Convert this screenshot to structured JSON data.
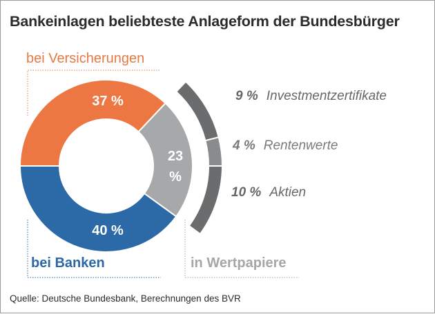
{
  "chart_data": {
    "type": "pie",
    "variant": "donut",
    "title": "Bankeinlagen beliebteste Anlageform der Bundesbürger",
    "unit": "%",
    "slices": [
      {
        "name": "bei Versicherungen",
        "value": 37,
        "label": "37 %",
        "color": "#ec7743"
      },
      {
        "name": "in Wertpapiere",
        "value": 23,
        "label": "23 %",
        "color": "#a7a8aa"
      },
      {
        "name": "bei Banken",
        "value": 40,
        "label": "40 %",
        "color": "#2b69a7"
      }
    ],
    "breakdown": {
      "parent": "in Wertpapiere",
      "items": [
        {
          "name": "Investmentzertifikate",
          "value": 9,
          "label": "9 %",
          "color": "#6b6c6e"
        },
        {
          "name": "Rentenwerte",
          "value": 4,
          "label": "4 %",
          "color": "#8a8b8d"
        },
        {
          "name": "Aktien",
          "value": 10,
          "label": "10 %",
          "color": "#6b6c6e"
        }
      ]
    },
    "source": "Quelle: Deutsche Bundesbank, Berechnungen des BVR"
  },
  "labels": {
    "versicherungen": "bei Versicherungen",
    "banken": "bei Banken",
    "wertpapiere": "in Wertpapiere",
    "pct_23_num": "23",
    "pct_23_sym": "%"
  }
}
